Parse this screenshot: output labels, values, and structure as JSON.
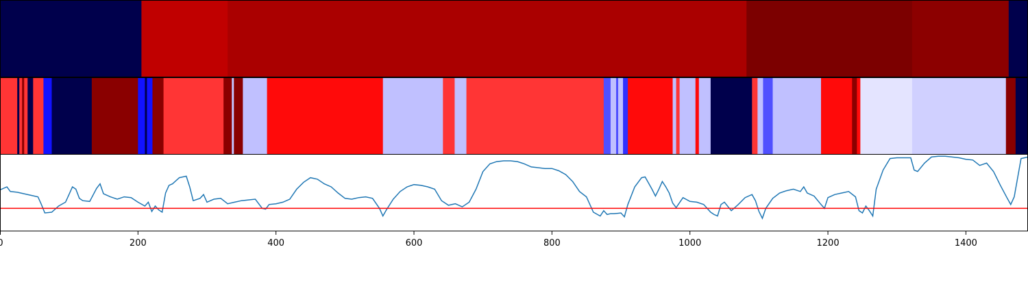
{
  "chart_data": [
    {
      "type": "heatmap",
      "name": "segment-band-coarse",
      "x_range": [
        0,
        1490
      ],
      "segments": [
        {
          "start": 0,
          "end": 205,
          "color": "#00004c"
        },
        {
          "start": 205,
          "end": 330,
          "color": "#c00000"
        },
        {
          "start": 330,
          "end": 1082,
          "color": "#aa0000"
        },
        {
          "start": 1082,
          "end": 1322,
          "color": "#7c0000"
        },
        {
          "start": 1322,
          "end": 1462,
          "color": "#8c0000"
        },
        {
          "start": 1462,
          "end": 1490,
          "color": "#00004c"
        }
      ]
    },
    {
      "type": "heatmap",
      "name": "segment-band-fine",
      "x_range": [
        0,
        1490
      ],
      "segments": [
        {
          "start": 0,
          "end": 25,
          "color": "#ff3535"
        },
        {
          "start": 25,
          "end": 28,
          "color": "#00004c"
        },
        {
          "start": 28,
          "end": 32,
          "color": "#ff3535"
        },
        {
          "start": 32,
          "end": 35,
          "color": "#8a0000"
        },
        {
          "start": 35,
          "end": 40,
          "color": "#ff3535"
        },
        {
          "start": 40,
          "end": 48,
          "color": "#00004c"
        },
        {
          "start": 48,
          "end": 63,
          "color": "#ff3535"
        },
        {
          "start": 63,
          "end": 75,
          "color": "#1212ff"
        },
        {
          "start": 75,
          "end": 133,
          "color": "#00004c"
        },
        {
          "start": 133,
          "end": 200,
          "color": "#8a0000"
        },
        {
          "start": 200,
          "end": 210,
          "color": "#1212ff"
        },
        {
          "start": 210,
          "end": 213,
          "color": "#00004c"
        },
        {
          "start": 213,
          "end": 221,
          "color": "#1212ff"
        },
        {
          "start": 221,
          "end": 237,
          "color": "#8a0000"
        },
        {
          "start": 237,
          "end": 324,
          "color": "#ff3535"
        },
        {
          "start": 324,
          "end": 336,
          "color": "#8a0000"
        },
        {
          "start": 336,
          "end": 339,
          "color": "#c4c4ff"
        },
        {
          "start": 339,
          "end": 352,
          "color": "#8a0000"
        },
        {
          "start": 352,
          "end": 387,
          "color": "#c0c0ff"
        },
        {
          "start": 387,
          "end": 555,
          "color": "#ff0a0a"
        },
        {
          "start": 555,
          "end": 642,
          "color": "#c0c0ff"
        },
        {
          "start": 642,
          "end": 659,
          "color": "#ff3535"
        },
        {
          "start": 659,
          "end": 676,
          "color": "#c0c0ff"
        },
        {
          "start": 676,
          "end": 875,
          "color": "#ff3535"
        },
        {
          "start": 875,
          "end": 885,
          "color": "#5050ff"
        },
        {
          "start": 885,
          "end": 893,
          "color": "#c0c0ff"
        },
        {
          "start": 893,
          "end": 896,
          "color": "#5050ff"
        },
        {
          "start": 896,
          "end": 903,
          "color": "#c0c0ff"
        },
        {
          "start": 903,
          "end": 910,
          "color": "#3030ff"
        },
        {
          "start": 910,
          "end": 975,
          "color": "#ff0a0a"
        },
        {
          "start": 975,
          "end": 980,
          "color": "#c0c0ff"
        },
        {
          "start": 980,
          "end": 985,
          "color": "#ff3535"
        },
        {
          "start": 985,
          "end": 1008,
          "color": "#c0c0ff"
        },
        {
          "start": 1008,
          "end": 1013,
          "color": "#ff0a0a"
        },
        {
          "start": 1013,
          "end": 1030,
          "color": "#c0c0ff"
        },
        {
          "start": 1030,
          "end": 1090,
          "color": "#00004c"
        },
        {
          "start": 1090,
          "end": 1098,
          "color": "#ff3535"
        },
        {
          "start": 1098,
          "end": 1106,
          "color": "#c0c0ff"
        },
        {
          "start": 1106,
          "end": 1120,
          "color": "#5050ff"
        },
        {
          "start": 1120,
          "end": 1190,
          "color": "#c0c0ff"
        },
        {
          "start": 1190,
          "end": 1235,
          "color": "#ff0a0a"
        },
        {
          "start": 1235,
          "end": 1242,
          "color": "#8a0000"
        },
        {
          "start": 1242,
          "end": 1247,
          "color": "#ff0a0a"
        },
        {
          "start": 1247,
          "end": 1322,
          "color": "#e4e4ff"
        },
        {
          "start": 1322,
          "end": 1458,
          "color": "#d0d0ff"
        },
        {
          "start": 1458,
          "end": 1472,
          "color": "#8a0000"
        },
        {
          "start": 1472,
          "end": 1490,
          "color": "#00004c"
        }
      ]
    },
    {
      "type": "line",
      "name": "signal",
      "line_color": "#1f77b4",
      "threshold": {
        "y": 0.3,
        "color": "#ff0000"
      },
      "ylim": [
        0,
        1
      ],
      "x_ticks": [
        "0",
        "200",
        "400",
        "600",
        "800",
        "1000",
        "1200",
        "1400"
      ],
      "x_tick_values": [
        0,
        200,
        400,
        600,
        800,
        1000,
        1200,
        1400
      ],
      "xlim": [
        0,
        1490
      ],
      "series": [
        {
          "x": [
            0,
            10,
            15,
            25,
            35,
            45,
            55,
            60,
            65,
            75,
            85,
            95,
            100,
            105,
            110,
            115,
            120,
            130,
            140,
            145,
            150,
            160,
            170,
            180,
            190,
            200,
            210,
            215,
            220,
            225,
            230,
            235,
            240,
            245,
            250,
            260,
            270,
            275,
            280,
            290,
            295,
            300,
            310,
            320,
            330,
            340,
            350,
            360,
            370,
            380,
            385,
            390,
            400,
            410,
            420,
            430,
            440,
            450,
            460,
            470,
            480,
            490,
            500,
            510,
            520,
            530,
            540,
            550,
            555,
            560,
            570,
            580,
            590,
            600,
            610,
            620,
            630,
            640,
            650,
            660,
            670,
            680,
            690,
            700,
            710,
            720,
            730,
            740,
            750,
            760,
            770,
            780,
            790,
            800,
            810,
            820,
            830,
            840,
            850,
            860,
            870,
            875,
            880,
            885,
            890,
            900,
            905,
            910,
            920,
            930,
            935,
            940,
            945,
            950,
            955,
            960,
            965,
            970,
            975,
            980,
            990,
            1000,
            1010,
            1020,
            1030,
            1035,
            1040,
            1045,
            1050,
            1060,
            1070,
            1080,
            1090,
            1095,
            1100,
            1105,
            1110,
            1120,
            1130,
            1140,
            1150,
            1160,
            1165,
            1170,
            1180,
            1190,
            1195,
            1200,
            1210,
            1220,
            1230,
            1240,
            1245,
            1250,
            1255,
            1260,
            1265,
            1270,
            1280,
            1290,
            1300,
            1310,
            1320,
            1325,
            1330,
            1340,
            1350,
            1360,
            1370,
            1380,
            1390,
            1400,
            1410,
            1420,
            1430,
            1440,
            1450,
            1460,
            1465,
            1470,
            1475,
            1480,
            1485,
            1490
          ],
          "y": [
            0.54,
            0.58,
            0.52,
            0.51,
            0.49,
            0.47,
            0.45,
            0.35,
            0.24,
            0.25,
            0.33,
            0.38,
            0.48,
            0.58,
            0.55,
            0.43,
            0.4,
            0.39,
            0.56,
            0.62,
            0.49,
            0.45,
            0.42,
            0.45,
            0.44,
            0.38,
            0.33,
            0.38,
            0.26,
            0.33,
            0.28,
            0.25,
            0.5,
            0.6,
            0.62,
            0.7,
            0.72,
            0.58,
            0.4,
            0.43,
            0.48,
            0.38,
            0.42,
            0.43,
            0.36,
            0.38,
            0.4,
            0.41,
            0.42,
            0.3,
            0.29,
            0.35,
            0.36,
            0.38,
            0.42,
            0.55,
            0.64,
            0.7,
            0.68,
            0.62,
            0.58,
            0.5,
            0.43,
            0.42,
            0.44,
            0.45,
            0.43,
            0.3,
            0.2,
            0.28,
            0.42,
            0.52,
            0.58,
            0.61,
            0.6,
            0.58,
            0.55,
            0.4,
            0.34,
            0.36,
            0.32,
            0.38,
            0.55,
            0.78,
            0.88,
            0.91,
            0.92,
            0.92,
            0.91,
            0.88,
            0.84,
            0.83,
            0.82,
            0.82,
            0.79,
            0.74,
            0.65,
            0.52,
            0.45,
            0.25,
            0.2,
            0.27,
            0.22,
            0.23,
            0.23,
            0.24,
            0.19,
            0.35,
            0.58,
            0.7,
            0.71,
            0.63,
            0.55,
            0.46,
            0.55,
            0.65,
            0.58,
            0.5,
            0.37,
            0.31,
            0.44,
            0.39,
            0.38,
            0.35,
            0.25,
            0.22,
            0.2,
            0.35,
            0.38,
            0.27,
            0.35,
            0.44,
            0.48,
            0.4,
            0.26,
            0.17,
            0.3,
            0.43,
            0.5,
            0.53,
            0.55,
            0.52,
            0.58,
            0.5,
            0.46,
            0.35,
            0.3,
            0.44,
            0.48,
            0.5,
            0.52,
            0.45,
            0.27,
            0.24,
            0.33,
            0.27,
            0.2,
            0.55,
            0.8,
            0.95,
            0.96,
            0.96,
            0.96,
            0.8,
            0.78,
            0.89,
            0.97,
            0.98,
            0.98,
            0.97,
            0.96,
            0.94,
            0.93,
            0.86,
            0.89,
            0.78,
            0.6,
            0.43,
            0.35,
            0.45,
            0.7,
            0.95,
            0.96,
            0.97
          ]
        }
      ]
    }
  ]
}
